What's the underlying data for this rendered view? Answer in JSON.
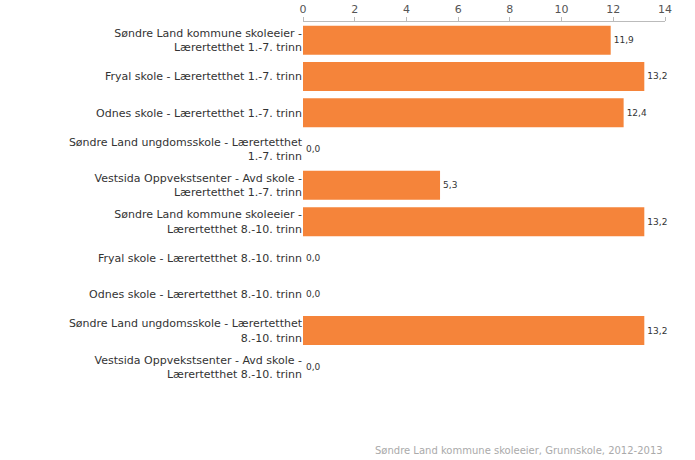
{
  "chart_data": {
    "type": "bar",
    "orientation": "horizontal",
    "categories": [
      "Søndre Land kommune skoleeier - Lærertetthet 1.-7. trinn",
      "Fryal skole - Lærertetthet 1.-7. trinn",
      "Odnes skole - Lærertetthet 1.-7. trinn",
      "Søndre Land ungdomsskole - Lærertetthet 1.-7. trinn",
      "Vestsida Oppvekstsenter - Avd skole - Lærertetthet 1.-7. trinn",
      "Søndre Land kommune skoleeier - Lærertetthet 8.-10. trinn",
      "Fryal skole - Lærertetthet 8.-10. trinn",
      "Odnes skole - Lærertetthet 8.-10. trinn",
      "Søndre Land ungdomsskole - Lærertetthet 8.-10. trinn",
      "Vestsida Oppvekstsenter - Avd skole - Lærertetthet 8.-10. trinn"
    ],
    "values": [
      11.9,
      13.2,
      12.4,
      0.0,
      5.3,
      13.2,
      0.0,
      0.0,
      13.2,
      0.0
    ],
    "value_labels": [
      "11,9",
      "13,2",
      "12,4",
      "0,0",
      "5,3",
      "13,2",
      "0,0",
      "0,0",
      "13,2",
      "0,0"
    ],
    "data_labels": true,
    "color": "#f5843a",
    "xlim": [
      0,
      14
    ],
    "xticks": [
      0,
      2,
      4,
      6,
      8,
      10,
      12,
      14
    ],
    "grid": false,
    "annotations": [
      "Søndre Land kommune skoleeier, Grunnskole, 2012-2013"
    ]
  }
}
